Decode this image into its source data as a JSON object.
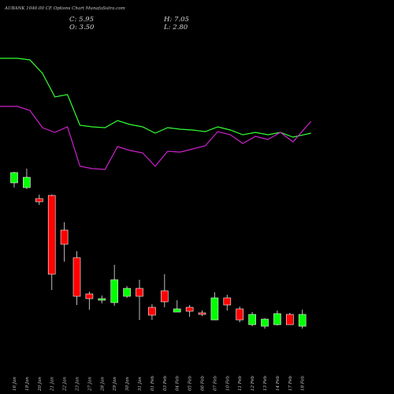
{
  "chart_data": {
    "type": "candlestick",
    "title": "AUBANK 1040.00 CE Options Chart MunafaSutra.com",
    "ohlc_summary": {
      "close_label": "C: 5.95",
      "high_label": "H: 7.05",
      "open_label": "O: 3.50",
      "low_label": "L: 2.80"
    },
    "categories": [
      "16 Jan",
      "19 Jan",
      "20 Jan",
      "21 Jan",
      "22 Jan",
      "23 Jan",
      "27 Jan",
      "28 Jan",
      "29 Jan",
      "30 Jan",
      "31 Jan",
      "01 Feb",
      "03 Feb",
      "04 Feb",
      "05 Feb",
      "06 Feb",
      "07 Feb",
      "10 Feb",
      "11 Feb",
      "12 Feb",
      "13 Feb",
      "14 Feb",
      "17 Feb",
      "18 Feb"
    ],
    "candles": [
      {
        "open": 218,
        "high": 232,
        "low": 212,
        "close": 231
      },
      {
        "open": 212,
        "high": 236,
        "low": 210,
        "close": 225
      },
      {
        "open": 198,
        "high": 203,
        "low": 190,
        "close": 194
      },
      {
        "open": 202,
        "high": 203,
        "low": 82,
        "close": 102
      },
      {
        "open": 158,
        "high": 168,
        "low": 118,
        "close": 140
      },
      {
        "open": 123,
        "high": 131,
        "low": 63,
        "close": 74
      },
      {
        "open": 77,
        "high": 80,
        "low": 57,
        "close": 71
      },
      {
        "open": 69,
        "high": 75,
        "low": 65,
        "close": 71
      },
      {
        "open": 66,
        "high": 114,
        "low": 62,
        "close": 95
      },
      {
        "open": 74,
        "high": 87,
        "low": 72,
        "close": 84
      },
      {
        "open": 84,
        "high": 95,
        "low": 44,
        "close": 74
      },
      {
        "open": 60,
        "high": 64,
        "low": 44,
        "close": 50
      },
      {
        "open": 81,
        "high": 102,
        "low": 60,
        "close": 67
      },
      {
        "open": 54,
        "high": 69,
        "low": 54,
        "close": 58
      },
      {
        "open": 60,
        "high": 63,
        "low": 48,
        "close": 55
      },
      {
        "open": 53,
        "high": 56,
        "low": 49,
        "close": 51
      },
      {
        "open": 44,
        "high": 79,
        "low": 44,
        "close": 72
      },
      {
        "open": 72,
        "high": 76,
        "low": 56,
        "close": 63
      },
      {
        "open": 58,
        "high": 61,
        "low": 41,
        "close": 44
      },
      {
        "open": 38,
        "high": 54,
        "low": 36,
        "close": 51
      },
      {
        "open": 36,
        "high": 46,
        "low": 33,
        "close": 45
      },
      {
        "open": 38,
        "high": 56,
        "low": 37,
        "close": 52
      },
      {
        "open": 51,
        "high": 53,
        "low": 38,
        "close": 38
      },
      {
        "open": 36,
        "high": 57,
        "low": 33,
        "close": 51
      }
    ],
    "overlay_lines": [
      {
        "values": [
          231,
          231,
          229,
          212,
          182,
          185,
          146,
          144,
          143,
          152,
          147,
          144,
          136,
          143,
          141,
          140,
          138,
          144,
          140,
          134,
          137,
          134,
          137,
          131,
          136
        ],
        "color": "#33ff33"
      },
      {
        "values": [
          170,
          170,
          165,
          143,
          137,
          144,
          94,
          91,
          90,
          119,
          114,
          111,
          94,
          113,
          112,
          116,
          120,
          138,
          134,
          123,
          132,
          128,
          137,
          125,
          151
        ],
        "color": "#cc22cc"
      }
    ],
    "up_color": "#00ff00",
    "down_color": "#ff0000",
    "grid": false
  }
}
